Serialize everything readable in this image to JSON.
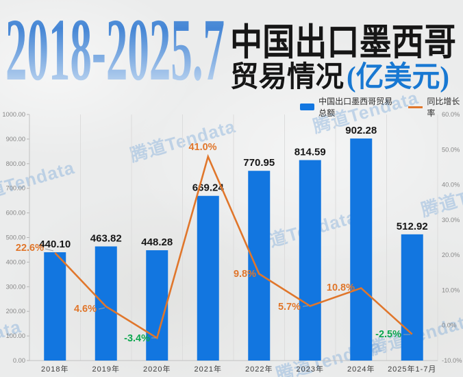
{
  "header": {
    "period": "2018-2025.7",
    "title_main": "中国出口墨西哥",
    "title_sub": "贸易情况",
    "title_unit": "(亿美元)",
    "period_gradient": [
      "#6ba1de",
      "#4586d5",
      "#d9e7f6"
    ],
    "title_unit_color": "#1878d2"
  },
  "legend": {
    "bar_label": "中国出口墨西哥贸易总额",
    "line_label": "同比增长率"
  },
  "watermark": {
    "text": "腾道Tendata"
  },
  "chart_data": {
    "type": "combo-bar-line",
    "title": "2018-2025.7 中国出口墨西哥贸易情况(亿美元)",
    "categories": [
      "2018年",
      "2019年",
      "2020年",
      "2021年",
      "2022年",
      "2023年",
      "2024年",
      "2025年1-7月"
    ],
    "series": [
      {
        "name": "中国出口墨西哥贸易总额",
        "type": "bar",
        "axis": "left",
        "unit": "亿美元",
        "color": "#1276e0",
        "values": [
          440.1,
          463.82,
          448.28,
          669.24,
          770.95,
          814.59,
          902.28,
          512.92
        ],
        "labels": [
          "440.10",
          "463.82",
          "448.28",
          "669.24",
          "770.95",
          "814.59",
          "902.28",
          "512.92"
        ]
      },
      {
        "name": "同比增长率",
        "type": "line",
        "axis": "right",
        "unit": "%",
        "color": "#e0762b",
        "positive_label_color": "#e0762b",
        "negative_label_color": "#0ca74f",
        "values": [
          22.6,
          4.6,
          -3.4,
          41.0,
          9.8,
          5.7,
          10.8,
          -2.5
        ],
        "labels": [
          "22.6%",
          "4.6%",
          "-3.4%",
          "41.0%",
          "9.8%",
          "5.7%",
          "10.8%",
          "-2.5%"
        ]
      }
    ],
    "left_axis": {
      "min": 0,
      "max": 1000,
      "step": 100,
      "labels": [
        "0.00",
        "100.00",
        "200.00",
        "300.00",
        "400.00",
        "500.00",
        "600.00",
        "700.00",
        "800.00",
        "900.00",
        "1000.00"
      ]
    },
    "right_axis": {
      "min": -10,
      "max": 60,
      "step": 10,
      "labels": [
        "-10.0%",
        "0.0%",
        "10.0%",
        "20.0%",
        "30.0%",
        "40.0%",
        "50.0%",
        "60.0%"
      ]
    },
    "grid": "vertical",
    "legend_position": "top-right"
  }
}
